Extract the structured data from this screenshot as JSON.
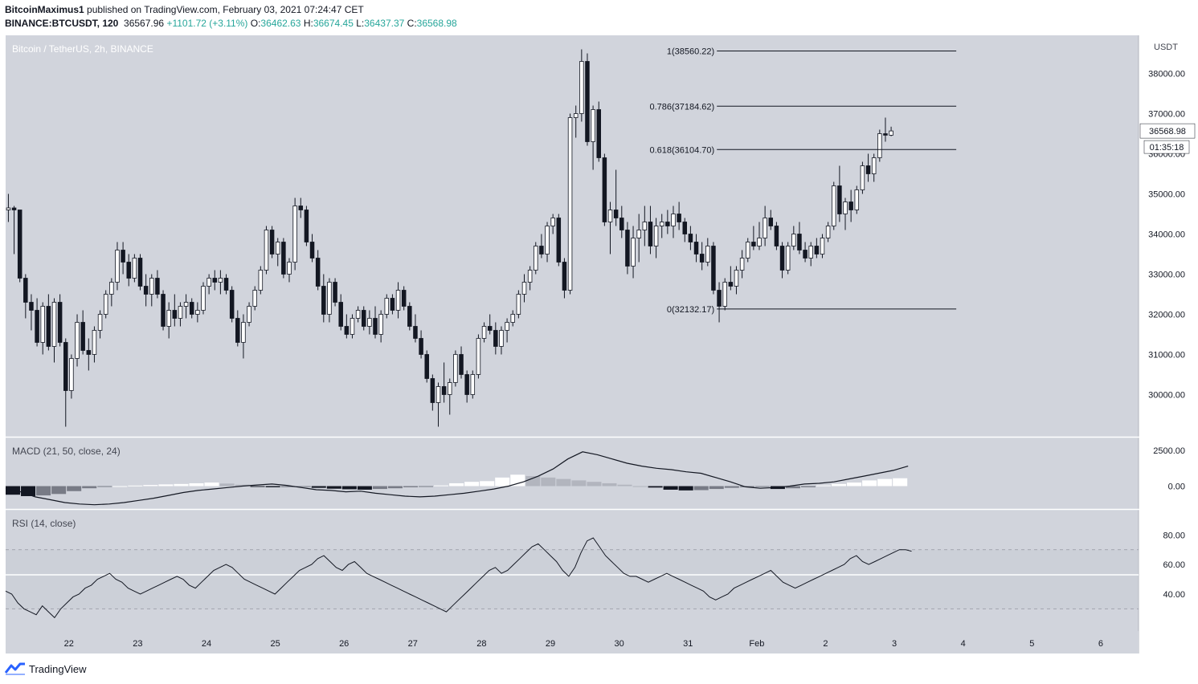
{
  "header": {
    "author": "BitcoinMaximus1",
    "published_text": " published on TradingView.com, February 03, 2021 07:24:47 CET",
    "symbol": "BINANCE:BTCUSDT, 120",
    "last": "36567.96",
    "change": "+1101.72 (+3.11%)",
    "o_label": "O:",
    "o_value": "36462.63",
    "h_label": "H:",
    "h_value": "36674.45",
    "l_label": "L:",
    "l_value": "36437.37",
    "c_label": "C:",
    "c_value": "36568.98"
  },
  "brand": {
    "name": "TradingView"
  },
  "colors": {
    "pane_bg": "#d1d4dc",
    "up_fill": "#ffffff",
    "down_fill": "#131722",
    "line": "#131722",
    "axis_text": "#131722",
    "ref_line": "#ffffff"
  },
  "chart_data": [
    {
      "type": "candlestick",
      "title": "Bitcoin / TetherUS, 2h, BINANCE",
      "currency_label": "USDT",
      "y_ticks": [
        "30000.00",
        "31000.00",
        "32000.00",
        "33000.00",
        "34000.00",
        "35000.00",
        "36000.00",
        "37000.00",
        "38000.00"
      ],
      "ylim": [
        28950,
        38950
      ],
      "last_price_label": "36568.98",
      "countdown_label": "01:35:18",
      "x_tick_labels": [
        "22",
        "23",
        "24",
        "25",
        "26",
        "27",
        "28",
        "29",
        "30",
        "31",
        "Feb",
        "2",
        "3",
        "4",
        "5",
        "6"
      ],
      "x_tick_day_index": [
        1,
        2,
        3,
        4,
        5,
        6,
        7,
        8,
        9,
        10,
        11,
        12,
        13,
        14,
        15,
        16
      ],
      "xlim_days": [
        0.08,
        16.55
      ],
      "fibonacci": [
        {
          "label": "1(38560.22)",
          "level": 1,
          "price": 38560.22
        },
        {
          "label": "0.786(37184.62)",
          "level": 0.786,
          "price": 37184.62
        },
        {
          "label": "0.618(36104.70)",
          "level": 0.618,
          "price": 36104.7
        },
        {
          "label": "0(32132.17)",
          "level": 0,
          "price": 32132.17
        }
      ],
      "fib_start_day": 10.42,
      "fib_end_day": 13.9,
      "first_candle_day": 0.12,
      "candles_per_day": 12,
      "candles": [
        [
          34600,
          35000,
          34300,
          34650
        ],
        [
          34650,
          34700,
          33500,
          34600
        ],
        [
          34600,
          34600,
          32800,
          32900
        ],
        [
          32900,
          33000,
          31900,
          32300
        ],
        [
          32300,
          32500,
          31600,
          32100
        ],
        [
          32100,
          32400,
          31200,
          31300
        ],
        [
          31300,
          32300,
          31000,
          32200
        ],
        [
          32200,
          32500,
          31100,
          31200
        ],
        [
          31200,
          32400,
          30800,
          32300
        ],
        [
          32300,
          32500,
          31200,
          31300
        ],
        [
          31300,
          31400,
          29200,
          30100
        ],
        [
          30100,
          31000,
          29900,
          30900
        ],
        [
          30900,
          32000,
          30700,
          31800
        ],
        [
          31800,
          32100,
          31000,
          31100
        ],
        [
          31100,
          31400,
          30600,
          31000
        ],
        [
          31000,
          31700,
          30800,
          31600
        ],
        [
          31600,
          32100,
          31400,
          32000
        ],
        [
          32000,
          32600,
          31900,
          32500
        ],
        [
          32500,
          32900,
          32200,
          32800
        ],
        [
          32800,
          33800,
          32600,
          33600
        ],
        [
          33600,
          33800,
          33000,
          33300
        ],
        [
          33300,
          33500,
          32700,
          32900
        ],
        [
          32900,
          33500,
          32800,
          33400
        ],
        [
          33400,
          33500,
          32600,
          32700
        ],
        [
          32700,
          33000,
          32200,
          32500
        ],
        [
          32500,
          33000,
          32200,
          32900
        ],
        [
          32900,
          33100,
          32400,
          32500
        ],
        [
          32500,
          32600,
          31600,
          31700
        ],
        [
          31700,
          32300,
          31400,
          32100
        ],
        [
          32100,
          32500,
          31700,
          31900
        ],
        [
          31900,
          32300,
          31700,
          32200
        ],
        [
          32200,
          32500,
          31900,
          32300
        ],
        [
          32300,
          32400,
          31900,
          32000
        ],
        [
          32000,
          32300,
          31800,
          32100
        ],
        [
          32100,
          32800,
          32000,
          32700
        ],
        [
          32700,
          33000,
          32500,
          32900
        ],
        [
          32900,
          33100,
          32600,
          32800
        ],
        [
          32800,
          33100,
          32500,
          32900
        ],
        [
          32900,
          33000,
          32500,
          32600
        ],
        [
          32600,
          32700,
          31800,
          31900
        ],
        [
          31900,
          32100,
          31200,
          31300
        ],
        [
          31300,
          32000,
          30900,
          31800
        ],
        [
          31800,
          32300,
          31700,
          32200
        ],
        [
          32200,
          32700,
          32100,
          32600
        ],
        [
          32600,
          33200,
          32500,
          33100
        ],
        [
          33100,
          34200,
          33000,
          34100
        ],
        [
          34100,
          34200,
          33400,
          33500
        ],
        [
          33500,
          33900,
          33200,
          33800
        ],
        [
          33800,
          33900,
          32900,
          33000
        ],
        [
          33000,
          33400,
          32800,
          33300
        ],
        [
          33300,
          34900,
          33100,
          34700
        ],
        [
          34700,
          34900,
          34400,
          34600
        ],
        [
          34600,
          34700,
          33700,
          33800
        ],
        [
          33800,
          34000,
          33300,
          33400
        ],
        [
          33400,
          33600,
          32600,
          32700
        ],
        [
          32700,
          33000,
          31800,
          32000
        ],
        [
          32000,
          32900,
          31800,
          32800
        ],
        [
          32800,
          32900,
          32200,
          32300
        ],
        [
          32300,
          32500,
          31600,
          31700
        ],
        [
          31700,
          32000,
          31400,
          31500
        ],
        [
          31500,
          32000,
          31400,
          31900
        ],
        [
          31900,
          32200,
          31800,
          32100
        ],
        [
          32100,
          32200,
          31600,
          31700
        ],
        [
          31700,
          32100,
          31500,
          31900
        ],
        [
          31900,
          32200,
          31400,
          31500
        ],
        [
          31500,
          32100,
          31300,
          32000
        ],
        [
          32000,
          32500,
          31900,
          32400
        ],
        [
          32400,
          32500,
          32000,
          32100
        ],
        [
          32100,
          32800,
          31900,
          32600
        ],
        [
          32600,
          32700,
          32100,
          32200
        ],
        [
          32200,
          32300,
          31600,
          31700
        ],
        [
          31700,
          32000,
          31300,
          31400
        ],
        [
          31400,
          31600,
          30900,
          31000
        ],
        [
          31000,
          31100,
          30300,
          30400
        ],
        [
          30400,
          30500,
          29600,
          29800
        ],
        [
          29800,
          30300,
          29200,
          30200
        ],
        [
          30200,
          30800,
          29800,
          30000
        ],
        [
          30000,
          30400,
          29500,
          30300
        ],
        [
          30300,
          31100,
          30200,
          31000
        ],
        [
          31000,
          31200,
          30400,
          30500
        ],
        [
          30500,
          30600,
          29800,
          30000
        ],
        [
          30000,
          30600,
          29900,
          30500
        ],
        [
          30500,
          31500,
          30400,
          31400
        ],
        [
          31400,
          31800,
          31300,
          31700
        ],
        [
          31700,
          32000,
          31500,
          31600
        ],
        [
          31600,
          31800,
          31000,
          31200
        ],
        [
          31200,
          31700,
          31000,
          31600
        ],
        [
          31600,
          31900,
          31300,
          31800
        ],
        [
          31800,
          32100,
          31700,
          32000
        ],
        [
          32000,
          32600,
          31900,
          32500
        ],
        [
          32500,
          33000,
          32300,
          32800
        ],
        [
          32800,
          33200,
          32600,
          33100
        ],
        [
          33100,
          33800,
          33000,
          33700
        ],
        [
          33700,
          34000,
          33400,
          33500
        ],
        [
          33500,
          34300,
          33300,
          34200
        ],
        [
          34200,
          34500,
          34000,
          34400
        ],
        [
          34400,
          34500,
          33200,
          33300
        ],
        [
          33300,
          33400,
          32400,
          32600
        ],
        [
          32600,
          37000,
          32500,
          36900
        ],
        [
          36900,
          37200,
          36400,
          37000
        ],
        [
          37000,
          38600,
          36800,
          38300
        ],
        [
          38300,
          38500,
          36200,
          36300
        ],
        [
          36300,
          37200,
          35600,
          37100
        ],
        [
          37100,
          37300,
          35800,
          35900
        ],
        [
          35900,
          36000,
          34200,
          34300
        ],
        [
          34300,
          34800,
          33500,
          34600
        ],
        [
          34600,
          35600,
          34200,
          34400
        ],
        [
          34400,
          34700,
          33900,
          34100
        ],
        [
          34100,
          34300,
          33000,
          33200
        ],
        [
          33200,
          34200,
          32900,
          33900
        ],
        [
          33900,
          34500,
          33300,
          34100
        ],
        [
          34100,
          34700,
          33700,
          34300
        ],
        [
          34300,
          34700,
          33500,
          33700
        ],
        [
          33700,
          34400,
          33400,
          34200
        ],
        [
          34200,
          34500,
          33900,
          34300
        ],
        [
          34300,
          34600,
          34000,
          34200
        ],
        [
          34200,
          34700,
          33900,
          34500
        ],
        [
          34500,
          34800,
          34100,
          34300
        ],
        [
          34300,
          34400,
          33800,
          34000
        ],
        [
          34000,
          34200,
          33600,
          33800
        ],
        [
          33800,
          34000,
          33300,
          33500
        ],
        [
          33500,
          33800,
          33100,
          33300
        ],
        [
          33300,
          33900,
          33200,
          33700
        ],
        [
          33700,
          33800,
          32500,
          32600
        ],
        [
          32600,
          32800,
          31800,
          32200
        ],
        [
          32200,
          32900,
          32100,
          32800
        ],
        [
          32800,
          33200,
          32600,
          32700
        ],
        [
          32700,
          33200,
          32500,
          33100
        ],
        [
          33100,
          33600,
          32900,
          33400
        ],
        [
          33400,
          33900,
          33300,
          33800
        ],
        [
          33800,
          34200,
          33600,
          33700
        ],
        [
          33700,
          34300,
          33600,
          33900
        ],
        [
          33900,
          34700,
          33700,
          34400
        ],
        [
          34400,
          34600,
          34100,
          34200
        ],
        [
          34200,
          34300,
          33600,
          33700
        ],
        [
          33700,
          33800,
          32900,
          33100
        ],
        [
          33100,
          33800,
          33000,
          33700
        ],
        [
          33700,
          34200,
          33600,
          34000
        ],
        [
          34000,
          34300,
          33500,
          33600
        ],
        [
          33600,
          33800,
          33300,
          33400
        ],
        [
          33400,
          33800,
          33200,
          33700
        ],
        [
          33700,
          33900,
          33400,
          33500
        ],
        [
          33500,
          34000,
          33400,
          33900
        ],
        [
          33900,
          34300,
          33800,
          34200
        ],
        [
          34200,
          35300,
          34100,
          35200
        ],
        [
          35200,
          35700,
          34300,
          34500
        ],
        [
          34500,
          34900,
          34100,
          34800
        ],
        [
          34800,
          35100,
          34300,
          34600
        ],
        [
          34600,
          35200,
          34500,
          35100
        ],
        [
          35100,
          35800,
          35000,
          35700
        ],
        [
          35700,
          36000,
          35300,
          35500
        ],
        [
          35500,
          36000,
          35300,
          35900
        ],
        [
          35900,
          36600,
          35800,
          36500
        ],
        [
          36500,
          36900,
          36300,
          36462
        ],
        [
          36462,
          36674,
          36437,
          36568
        ]
      ]
    },
    {
      "type": "line+histogram",
      "title": "MACD (21, 50, close, 24)",
      "y_ticks": [
        "2500.00",
        "0.00"
      ],
      "ylim": [
        -1600,
        3400
      ],
      "macd": [
        -150,
        -400,
        -750,
        -950,
        -1150,
        -1250,
        -1300,
        -1250,
        -1150,
        -1000,
        -850,
        -650,
        -450,
        -300,
        -200,
        -100,
        0,
        80,
        150,
        50,
        -100,
        -250,
        -300,
        -400,
        -350,
        -500,
        -600,
        -700,
        -750,
        -700,
        -600,
        -500,
        -350,
        -200,
        0,
        300,
        700,
        1200,
        1900,
        2400,
        2200,
        1900,
        1600,
        1400,
        1250,
        1150,
        1000,
        900,
        600,
        300,
        -50,
        -150,
        -100,
        0,
        150,
        200,
        300,
        500,
        700,
        900,
        1100,
        1400
      ],
      "histogram": [
        -600,
        -700,
        -650,
        -550,
        -350,
        -150,
        -50,
        0,
        40,
        80,
        120,
        150,
        200,
        250,
        180,
        100,
        -50,
        -80,
        -70,
        -60,
        -120,
        -180,
        -220,
        -250,
        -200,
        -150,
        -80,
        -20,
        50,
        200,
        300,
        350,
        600,
        800,
        700,
        600,
        500,
        400,
        300,
        200,
        100,
        0,
        -100,
        -250,
        -300,
        -280,
        -200,
        -120,
        -80,
        -60,
        -200,
        -150,
        -80,
        50,
        150,
        250,
        400,
        500,
        550
      ]
    },
    {
      "type": "line",
      "title": "RSI (14, close)",
      "y_ticks": [
        "80.00",
        "60.00",
        "40.00"
      ],
      "ylim": [
        15,
        97
      ],
      "bands": [
        70,
        30
      ],
      "reference_line": 53,
      "rsi": [
        42,
        40,
        34,
        30,
        28,
        26,
        32,
        28,
        24,
        30,
        34,
        38,
        40,
        44,
        46,
        50,
        52,
        54,
        50,
        48,
        44,
        42,
        40,
        42,
        44,
        46,
        48,
        50,
        52,
        50,
        46,
        44,
        48,
        52,
        56,
        58,
        60,
        58,
        54,
        50,
        48,
        46,
        44,
        42,
        40,
        44,
        48,
        52,
        56,
        58,
        60,
        64,
        66,
        62,
        58,
        56,
        60,
        62,
        58,
        54,
        52,
        50,
        48,
        46,
        44,
        42,
        40,
        38,
        36,
        34,
        32,
        30,
        28,
        32,
        36,
        40,
        44,
        48,
        52,
        56,
        58,
        54,
        56,
        60,
        64,
        68,
        72,
        74,
        70,
        66,
        62,
        56,
        52,
        58,
        68,
        76,
        78,
        72,
        66,
        62,
        58,
        54,
        52,
        52,
        50,
        48,
        50,
        52,
        54,
        52,
        50,
        48,
        46,
        44,
        42,
        38,
        36,
        38,
        40,
        44,
        46,
        48,
        50,
        52,
        54,
        56,
        52,
        48,
        46,
        44,
        46,
        48,
        50,
        52,
        54,
        56,
        58,
        60,
        64,
        66,
        62,
        60,
        62,
        64,
        66,
        68,
        70,
        70,
        69
      ]
    }
  ]
}
